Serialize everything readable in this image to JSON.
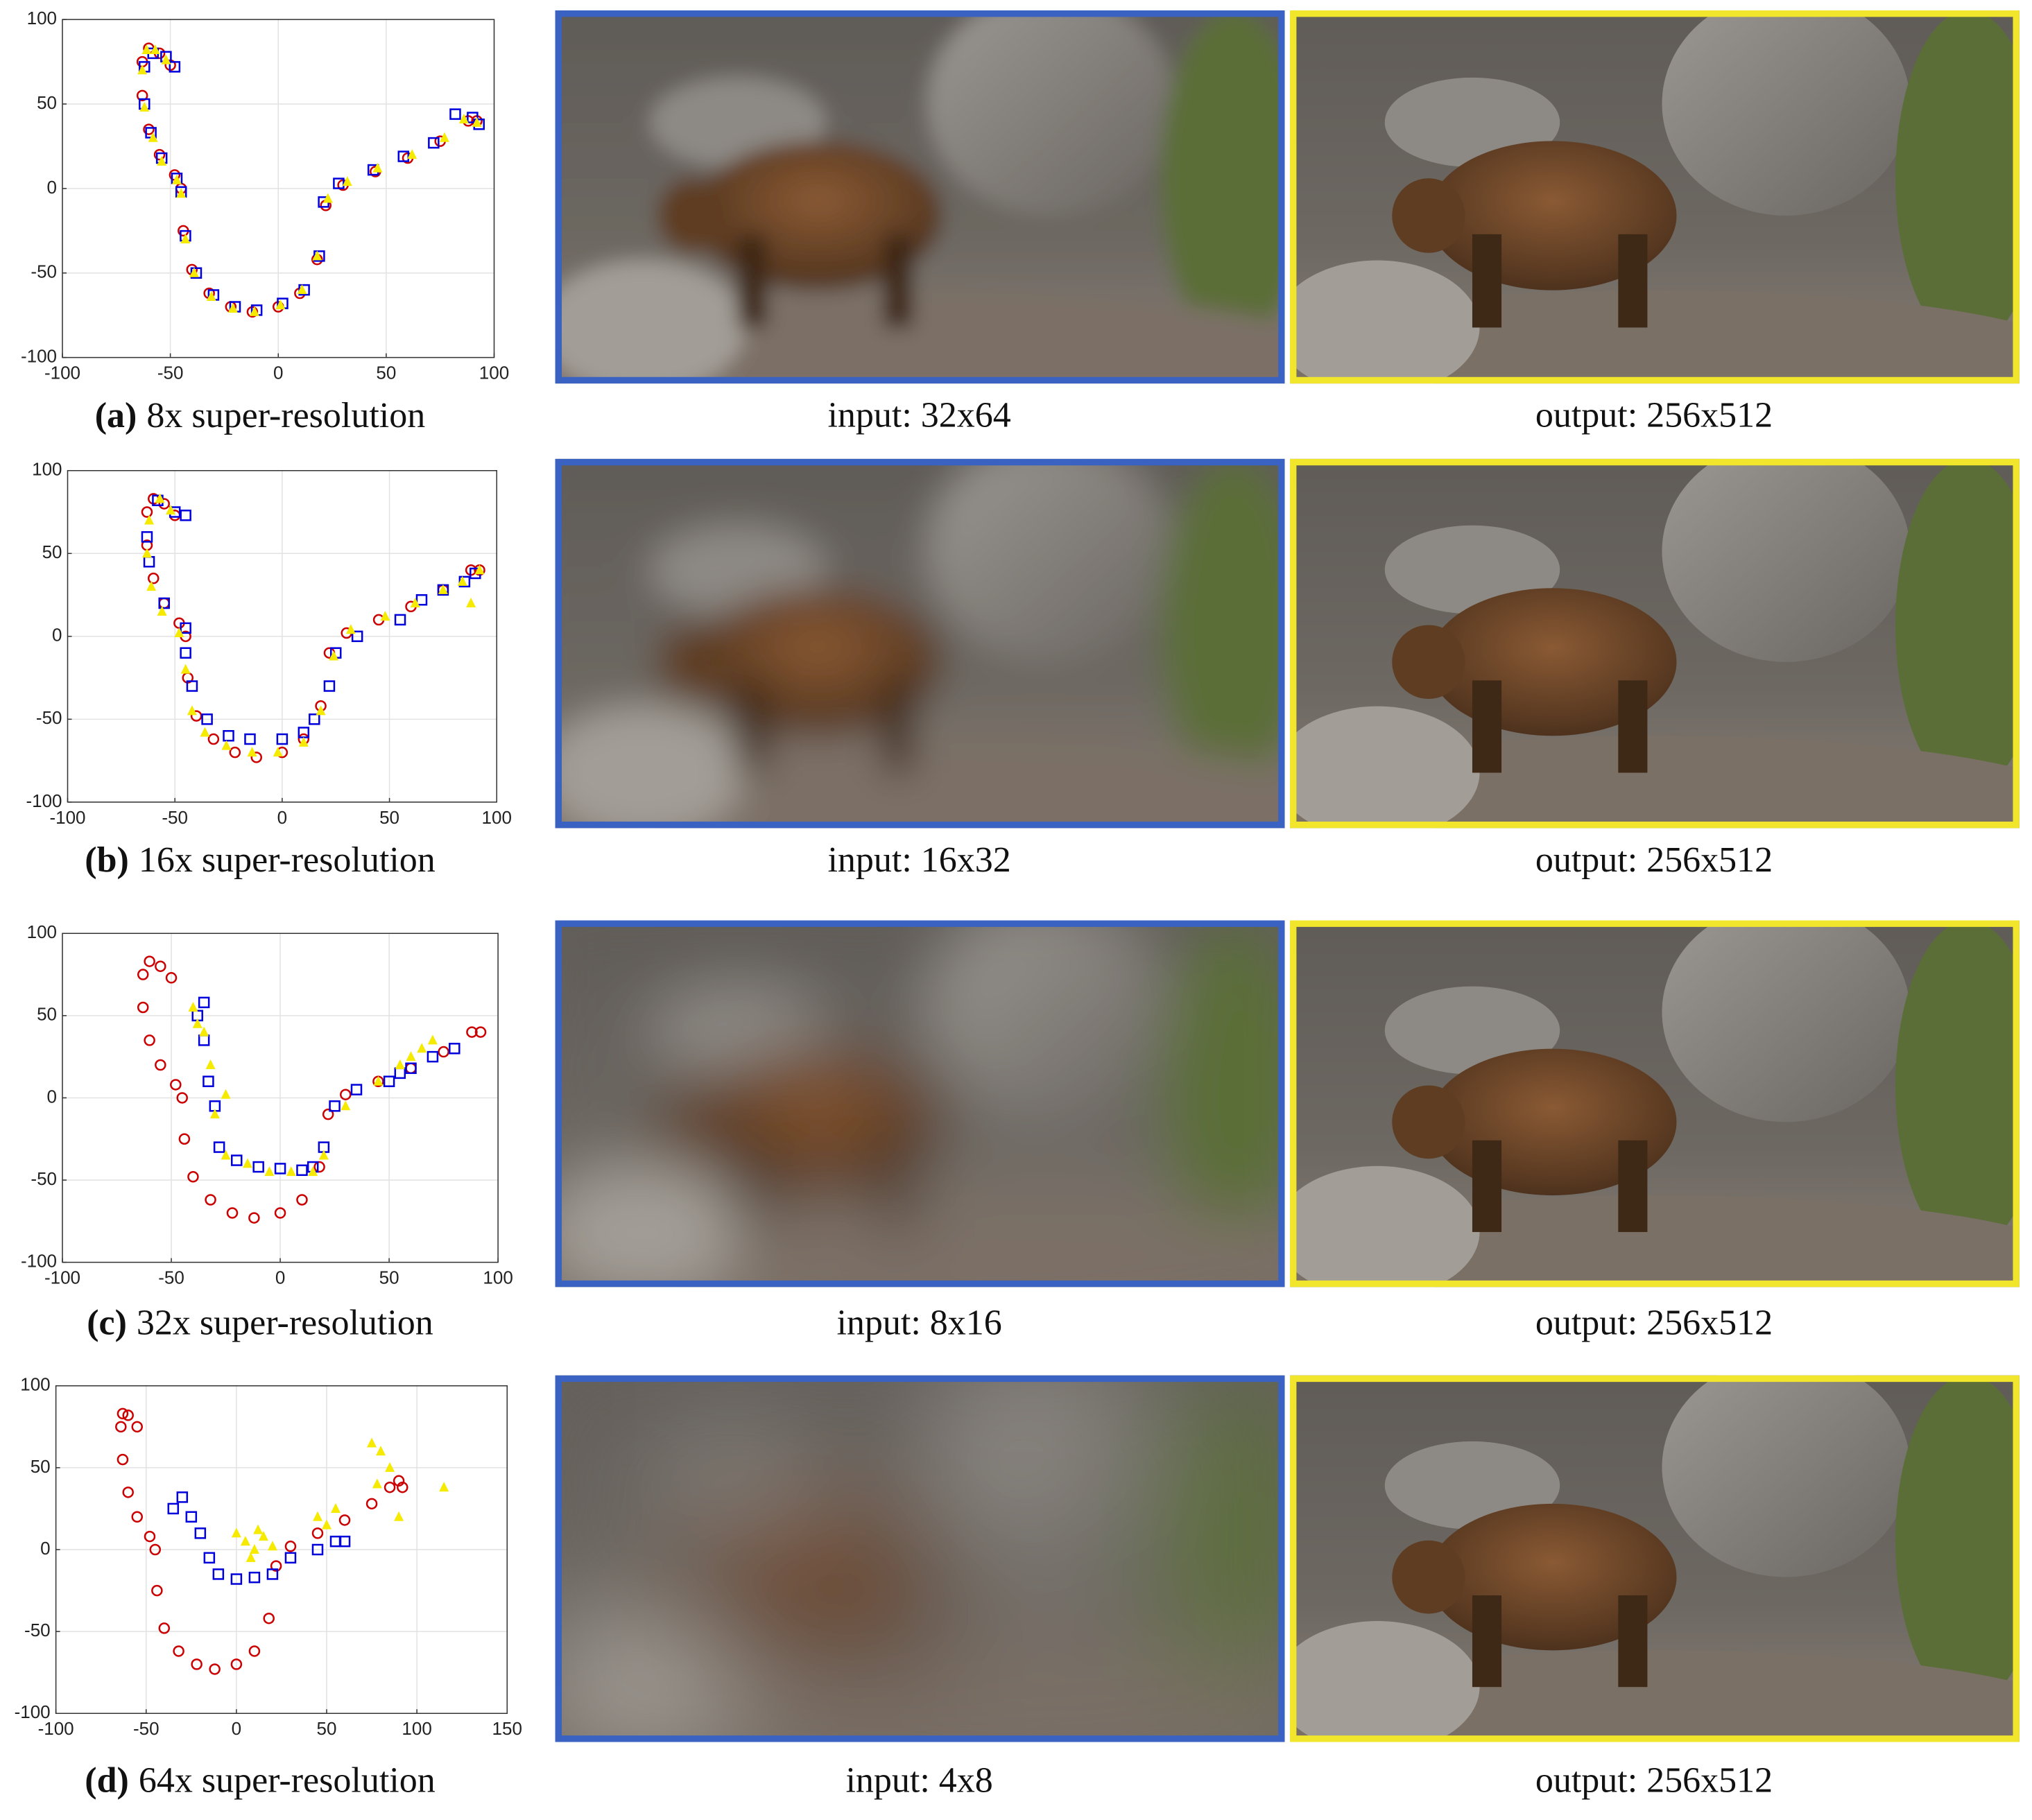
{
  "chart_data": [
    {
      "type": "scatter",
      "caption_label": "(a)",
      "caption": "8x super-resolution",
      "xlim": [
        -100,
        100
      ],
      "ylim": [
        -100,
        100
      ],
      "xticks": [
        -100,
        -50,
        0,
        50,
        100
      ],
      "yticks": [
        -100,
        -50,
        0,
        50,
        100
      ],
      "grid": true,
      "series": [
        {
          "color": "#cc0000",
          "marker": "circle",
          "x": [
            -50,
            -55,
            -60,
            -63,
            -63,
            -60,
            -55,
            -48,
            -45,
            -44,
            -40,
            -32,
            -22,
            -12,
            0,
            10,
            18,
            22,
            30,
            45,
            60,
            75,
            88,
            92
          ],
          "values": [
            73,
            80,
            83,
            75,
            55,
            35,
            20,
            8,
            0,
            -25,
            -48,
            -62,
            -70,
            -73,
            -70,
            -62,
            -42,
            -10,
            2,
            10,
            18,
            28,
            40,
            40
          ]
        },
        {
          "color": "#0000dd",
          "marker": "square",
          "x": [
            -48,
            -52,
            -58,
            -62,
            -62,
            -59,
            -54,
            -47,
            -45,
            -43,
            -38,
            -30,
            -20,
            -10,
            2,
            12,
            19,
            21,
            28,
            44,
            58,
            72,
            82,
            90,
            93
          ],
          "values": [
            72,
            78,
            80,
            72,
            50,
            33,
            18,
            6,
            -2,
            -28,
            -50,
            -63,
            -70,
            -72,
            -68,
            -60,
            -40,
            -8,
            3,
            11,
            19,
            27,
            44,
            42,
            38
          ]
        },
        {
          "color": "#f5ea00",
          "marker": "triangle",
          "x": [
            -52,
            -57,
            -61,
            -63,
            -62,
            -58,
            -54,
            -47,
            -45,
            -43,
            -39,
            -31,
            -21,
            -11,
            1,
            11,
            18,
            23,
            32,
            46,
            62,
            77,
            86,
            92
          ],
          "values": [
            76,
            82,
            82,
            70,
            48,
            30,
            16,
            5,
            -3,
            -30,
            -50,
            -64,
            -71,
            -73,
            -69,
            -60,
            -40,
            -6,
            4,
            12,
            20,
            30,
            41,
            39
          ]
        }
      ]
    },
    {
      "type": "scatter",
      "caption_label": "(b)",
      "caption": "16x super-resolution",
      "xlim": [
        -100,
        100
      ],
      "ylim": [
        -100,
        100
      ],
      "xticks": [
        -100,
        -50,
        0,
        50,
        100
      ],
      "yticks": [
        -100,
        -50,
        0,
        50,
        100
      ],
      "grid": true,
      "series": [
        {
          "color": "#cc0000",
          "marker": "circle",
          "x": [
            -50,
            -55,
            -60,
            -63,
            -63,
            -60,
            -55,
            -48,
            -45,
            -44,
            -40,
            -32,
            -22,
            -12,
            0,
            10,
            18,
            22,
            30,
            45,
            60,
            75,
            88,
            92
          ],
          "values": [
            73,
            80,
            83,
            75,
            55,
            35,
            20,
            8,
            0,
            -25,
            -48,
            -62,
            -70,
            -73,
            -70,
            -62,
            -42,
            -10,
            2,
            10,
            18,
            28,
            40,
            40
          ]
        },
        {
          "color": "#0000dd",
          "marker": "square",
          "x": [
            -45,
            -50,
            -58,
            -63,
            -62,
            -55,
            -45,
            -45,
            -42,
            -35,
            -25,
            -15,
            0,
            10,
            15,
            22,
            25,
            35,
            55,
            65,
            75,
            85,
            90
          ],
          "values": [
            73,
            75,
            82,
            60,
            45,
            20,
            5,
            -10,
            -30,
            -50,
            -60,
            -62,
            -62,
            -58,
            -50,
            -30,
            -10,
            0,
            10,
            22,
            28,
            33,
            38
          ]
        },
        {
          "color": "#f5ea00",
          "marker": "triangle",
          "x": [
            -52,
            -57,
            -62,
            -63,
            -61,
            -56,
            -48,
            -45,
            -42,
            -36,
            -26,
            -14,
            -2,
            10,
            18,
            24,
            32,
            48,
            62,
            75,
            84,
            92,
            88
          ],
          "values": [
            76,
            83,
            70,
            50,
            30,
            15,
            2,
            -20,
            -45,
            -58,
            -66,
            -70,
            -70,
            -64,
            -45,
            -12,
            4,
            12,
            20,
            28,
            33,
            40,
            20
          ]
        }
      ]
    },
    {
      "type": "scatter",
      "caption_label": "(c)",
      "caption": "32x super-resolution",
      "xlim": [
        -100,
        100
      ],
      "ylim": [
        -100,
        100
      ],
      "xticks": [
        -100,
        -50,
        0,
        50,
        100
      ],
      "yticks": [
        -100,
        -50,
        0,
        50,
        100
      ],
      "grid": true,
      "series": [
        {
          "color": "#cc0000",
          "marker": "circle",
          "x": [
            -50,
            -55,
            -60,
            -63,
            -63,
            -60,
            -55,
            -48,
            -45,
            -44,
            -40,
            -32,
            -22,
            -12,
            0,
            10,
            18,
            22,
            30,
            45,
            60,
            75,
            88,
            92
          ],
          "values": [
            73,
            80,
            83,
            75,
            55,
            35,
            20,
            8,
            0,
            -25,
            -48,
            -62,
            -70,
            -73,
            -70,
            -62,
            -42,
            -10,
            2,
            10,
            18,
            28,
            40,
            40
          ]
        },
        {
          "color": "#0000dd",
          "marker": "square",
          "x": [
            -35,
            -38,
            -35,
            -33,
            -30,
            -28,
            -20,
            -10,
            0,
            10,
            15,
            20,
            25,
            35,
            50,
            55,
            60,
            70,
            80
          ],
          "values": [
            58,
            50,
            35,
            10,
            -5,
            -30,
            -38,
            -42,
            -43,
            -44,
            -42,
            -30,
            -5,
            5,
            10,
            15,
            18,
            25,
            30
          ]
        },
        {
          "color": "#f5ea00",
          "marker": "triangle",
          "x": [
            -40,
            -38,
            -35,
            -32,
            -30,
            -25,
            -15,
            -5,
            5,
            15,
            20,
            30,
            45,
            55,
            60,
            65,
            70,
            -25
          ],
          "values": [
            55,
            45,
            40,
            20,
            -10,
            -35,
            -40,
            -45,
            -45,
            -45,
            -35,
            -5,
            10,
            20,
            25,
            30,
            35,
            2
          ]
        }
      ]
    },
    {
      "type": "scatter",
      "caption_label": "(d)",
      "caption": "64x super-resolution",
      "xlim": [
        -100,
        150
      ],
      "ylim": [
        -100,
        100
      ],
      "xticks": [
        -100,
        -50,
        0,
        50,
        100,
        150
      ],
      "yticks": [
        -100,
        -50,
        0,
        50,
        100
      ],
      "grid": true,
      "series": [
        {
          "color": "#cc0000",
          "marker": "circle",
          "x": [
            -55,
            -60,
            -63,
            -64,
            -63,
            -60,
            -55,
            -48,
            -45,
            -44,
            -40,
            -32,
            -22,
            -12,
            0,
            10,
            18,
            22,
            30,
            45,
            60,
            75,
            85,
            90,
            92
          ],
          "values": [
            75,
            82,
            83,
            75,
            55,
            35,
            20,
            8,
            0,
            -25,
            -48,
            -62,
            -70,
            -73,
            -70,
            -62,
            -42,
            -10,
            2,
            10,
            18,
            28,
            38,
            42,
            38
          ]
        },
        {
          "color": "#0000dd",
          "marker": "square",
          "x": [
            -30,
            -35,
            -25,
            -20,
            -15,
            -10,
            0,
            10,
            20,
            30,
            45,
            55,
            60
          ],
          "values": [
            32,
            25,
            20,
            10,
            -5,
            -15,
            -18,
            -17,
            -15,
            -5,
            0,
            5,
            5
          ]
        },
        {
          "color": "#f5ea00",
          "marker": "triangle",
          "x": [
            0,
            5,
            10,
            15,
            8,
            12,
            20,
            45,
            50,
            55,
            75,
            80,
            85,
            78,
            90,
            115
          ],
          "values": [
            10,
            5,
            0,
            8,
            -5,
            12,
            2,
            20,
            15,
            25,
            65,
            60,
            50,
            40,
            20,
            38
          ]
        }
      ]
    }
  ],
  "images": [
    {
      "input_caption": "input: 32x64",
      "output_caption": "output: 256x512"
    },
    {
      "input_caption": "input: 16x32",
      "output_caption": "output: 256x512"
    },
    {
      "input_caption": "input: 8x16",
      "output_caption": "output: 256x512"
    },
    {
      "input_caption": "input: 4x8",
      "output_caption": "output: 256x512"
    }
  ]
}
